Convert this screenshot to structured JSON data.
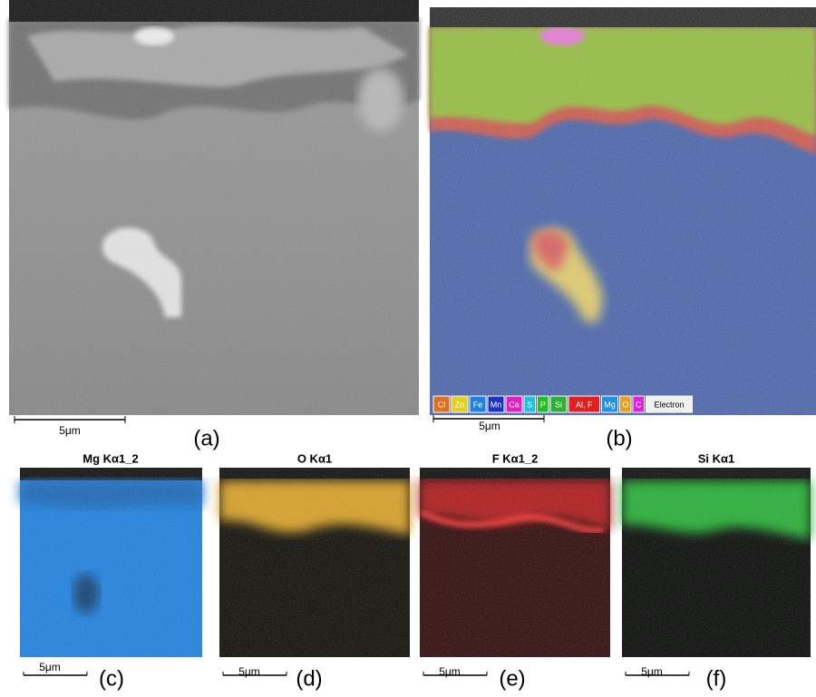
{
  "panels": [
    {
      "label": "(a)",
      "scale_bar": "5μm"
    },
    {
      "label": "(b)",
      "scale_bar": "5μm",
      "legend": [
        "Cl",
        "Zn",
        "Fe",
        "Mn",
        "Ca",
        "S",
        "P",
        "Si",
        "Al, F",
        "Mg",
        "O",
        "C",
        "Electron"
      ]
    },
    {
      "label": "(c)",
      "title": "Mg Kα1_2",
      "scale_bar": "5μm"
    },
    {
      "label": "(d)",
      "title": "O Kα1",
      "scale_bar": "5μm"
    },
    {
      "label": "(e)",
      "title": "F Kα1_2",
      "scale_bar": "5μm"
    },
    {
      "label": "(f)",
      "title": "Si Kα1",
      "scale_bar": "5μm"
    }
  ]
}
